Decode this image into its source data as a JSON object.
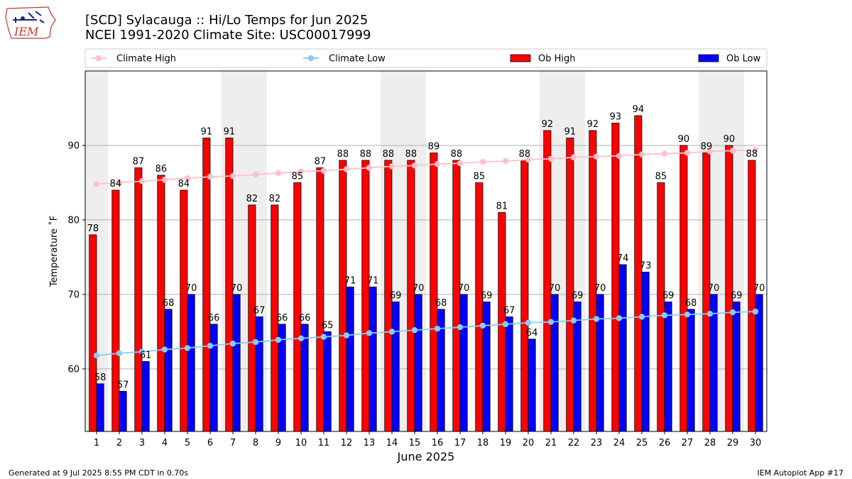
{
  "logo": {
    "text": "IEM"
  },
  "chart_data": {
    "type": "bar",
    "title": "[SCD] Sylacauga :: Hi/Lo Temps for Jun 2025",
    "subtitle": "NCEI 1991-2020 Climate Site: USC00017999",
    "xlabel": "June 2025",
    "ylabel": "Temperature ˚F",
    "ylim": [
      51.6,
      100
    ],
    "yticks": [
      60,
      70,
      80,
      90
    ],
    "grid": true,
    "legend_position": "top",
    "categories": [
      "1",
      "2",
      "3",
      "4",
      "5",
      "6",
      "7",
      "8",
      "9",
      "10",
      "11",
      "12",
      "13",
      "14",
      "15",
      "16",
      "17",
      "18",
      "19",
      "20",
      "21",
      "22",
      "23",
      "24",
      "25",
      "26",
      "27",
      "28",
      "29",
      "30"
    ],
    "weekend_shading_days": [
      [
        1
      ],
      [
        7,
        8
      ],
      [
        14,
        15
      ],
      [
        21,
        22
      ],
      [
        28,
        29
      ]
    ],
    "series": [
      {
        "name": "Ob High",
        "type": "bar",
        "color": "#ff0000",
        "values": [
          78,
          84,
          87,
          86,
          84,
          91,
          91,
          82,
          82,
          85,
          87,
          88,
          88,
          88,
          88,
          89,
          88,
          85,
          81,
          88,
          92,
          91,
          92,
          93,
          94,
          85,
          90,
          89,
          90,
          88
        ],
        "labels": [
          78,
          84,
          87,
          86,
          84,
          91,
          91,
          82,
          82,
          85,
          87,
          88,
          88,
          88,
          88,
          89,
          88,
          85,
          81,
          88,
          92,
          91,
          92,
          93,
          94,
          85,
          90,
          89,
          90,
          88
        ]
      },
      {
        "name": "Ob Low",
        "type": "bar",
        "color": "#0000ff",
        "values": [
          58,
          57,
          61,
          68,
          70,
          66,
          70,
          67,
          66,
          66,
          65,
          71,
          71,
          69,
          70,
          68,
          70,
          69,
          67,
          64,
          70,
          69,
          70,
          74,
          73,
          69,
          68,
          70,
          69,
          70
        ],
        "labels": [
          58,
          57,
          61,
          68,
          70,
          66,
          70,
          67,
          66,
          66,
          65,
          71,
          71,
          69,
          70,
          68,
          70,
          69,
          67,
          64,
          70,
          69,
          70,
          74,
          73,
          69,
          68,
          70,
          69,
          70
        ]
      },
      {
        "name": "Climate High",
        "type": "line",
        "color": "#ffc0cb",
        "values": [
          84.8,
          85.0,
          85.2,
          85.4,
          85.6,
          85.8,
          85.9,
          86.1,
          86.3,
          86.5,
          86.6,
          86.8,
          87.0,
          87.2,
          87.3,
          87.5,
          87.6,
          87.8,
          87.9,
          88.1,
          88.2,
          88.4,
          88.5,
          88.6,
          88.8,
          88.9,
          89.0,
          89.2,
          89.3,
          89.4
        ]
      },
      {
        "name": "Climate Low",
        "type": "line",
        "color": "#87ceeb",
        "values": [
          61.8,
          62.1,
          62.3,
          62.6,
          62.8,
          63.1,
          63.4,
          63.6,
          63.9,
          64.1,
          64.3,
          64.5,
          64.8,
          65.0,
          65.2,
          65.4,
          65.6,
          65.8,
          66.0,
          66.2,
          66.3,
          66.5,
          66.7,
          66.8,
          67.0,
          67.2,
          67.3,
          67.4,
          67.6,
          67.7
        ]
      }
    ],
    "legend": [
      "Climate High",
      "Climate Low",
      "Ob High",
      "Ob Low"
    ]
  },
  "footer": {
    "left": "Generated at 9 Jul 2025 8:55 PM CDT in 0.70s",
    "right": "IEM Autoplot App #17"
  }
}
